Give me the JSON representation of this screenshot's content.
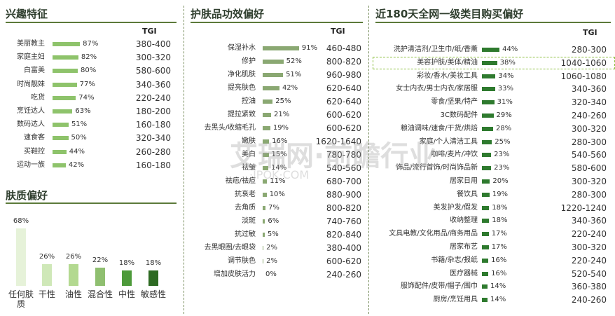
{
  "chart_data": [
    {
      "type": "bar",
      "title": "兴趣特征",
      "tgi_header": "TGI",
      "categories": [
        "美丽教主",
        "家庭主妇",
        "白富美",
        "时尚靓妹",
        "吃货",
        "烹饪达人",
        "数码达人",
        "速食客",
        "买鞋控",
        "运动一族"
      ],
      "values": [
        87,
        82,
        80,
        77,
        74,
        63,
        51,
        50,
        44,
        42
      ],
      "value_labels": [
        "87%",
        "82%",
        "80%",
        "77%",
        "74%",
        "63%",
        "51%",
        "50%",
        "44%",
        "42%"
      ],
      "tgi": [
        "380-400",
        "300-320",
        "580-600",
        "340-360",
        "220-240",
        "180-200",
        "160-180",
        "320-340",
        "260-280",
        "160-180"
      ],
      "xlim": [
        0,
        100
      ],
      "color": "#8ec36b"
    },
    {
      "type": "bar",
      "title": "肤质偏好",
      "categories": [
        "任何肤质",
        "干性",
        "油性",
        "混合性",
        "中性",
        "敏感性"
      ],
      "values": [
        68,
        26,
        26,
        22,
        18,
        18
      ],
      "value_labels": [
        "68%",
        "26%",
        "26%",
        "22%",
        "18%",
        "18%"
      ],
      "ylim": [
        0,
        70
      ],
      "colors": [
        "#e6f2d9",
        "#cfe8b8",
        "#b3d990",
        "#8fbf70",
        "#4d9a3a",
        "#2d6a22"
      ]
    },
    {
      "type": "bar",
      "title": "护肤品功效偏好",
      "tgi_header": "TGI",
      "categories": [
        "保湿补水",
        "修护",
        "净化肌肤",
        "提亮肤色",
        "控油",
        "提拉紧致",
        "去黑头/收缩毛孔",
        "嫩肤",
        "美白",
        "祛皱",
        "祛疤/祛痘",
        "抗衰老",
        "去角质",
        "淡斑",
        "抗过敏",
        "去黑眼圈/去眼袋",
        "调节肤色",
        "增加皮肤活力"
      ],
      "values": [
        91,
        52,
        51,
        42,
        25,
        21,
        19,
        16,
        15,
        14,
        11,
        10,
        7,
        6,
        5,
        2,
        2,
        0
      ],
      "value_labels": [
        "91%",
        "52%",
        "51%",
        "42%",
        "25%",
        "21%",
        "19%",
        "16%",
        "15%",
        "14%",
        "11%",
        "10%",
        "7%",
        "6%",
        "5%",
        "2%",
        "2%",
        "0%"
      ],
      "tgi": [
        "460-480",
        "800-820",
        "960-980",
        "620-640",
        "620-640",
        "600-620",
        "600-620",
        "1620-1640",
        "780-780",
        "540-560",
        "680-700",
        "880-900",
        "800-820",
        "740-760",
        "820-840",
        "380-400",
        "600-620",
        "240-260"
      ],
      "xlim": [
        0,
        100
      ],
      "color": "#8aa872"
    },
    {
      "type": "bar",
      "title": "近180天全网一级类目购买偏好",
      "tgi_header": "TGI",
      "categories": [
        "洗护清洁剂/卫生巾/纸/香薰",
        "美容护肤/美体/精油",
        "彩妆/香水/美妆工具",
        "女士内衣/男士内衣/家居服",
        "零食/坚果/特产",
        "3C数码配件",
        "粮油调味/速食/干货/烘焙",
        "家庭/个人清洁工具",
        "咖啡/麦片/冲饮",
        "饰品/流行首饰/时尚饰品新",
        "居家日用",
        "餐饮具",
        "美发护发/假发",
        "收纳整理",
        "文具电教/文化用品/商务用品",
        "居家布艺",
        "书籍/杂志/报纸",
        "医疗器械",
        "服饰配件/皮带/帽子/围巾",
        "厨房/烹饪用具"
      ],
      "values": [
        44,
        38,
        34,
        33,
        31,
        29,
        28,
        25,
        23,
        23,
        20,
        19,
        18,
        18,
        17,
        17,
        16,
        16,
        14,
        14
      ],
      "value_labels": [
        "44%",
        "38%",
        "34%",
        "33%",
        "31%",
        "29%",
        "28%",
        "25%",
        "23%",
        "23%",
        "20%",
        "19%",
        "18%",
        "18%",
        "17%",
        "17%",
        "16%",
        "16%",
        "14%",
        "14%"
      ],
      "tgi": [
        "280-300",
        "1040-1060",
        "1060-1080",
        "340-360",
        "320-340",
        "240-260",
        "300-320",
        "280-300",
        "540-560",
        "580-600",
        "300-320",
        "280-300",
        "1220-1240",
        "340-360",
        "220-240",
        "300-320",
        "220-240",
        "520-540",
        "360-380",
        "240-260"
      ],
      "highlight_index": 1,
      "xlim": [
        0,
        100
      ],
      "color": "#2e7a2e"
    }
  ],
  "watermark": {
    "line1": "艾瑞网·前瞻行业",
    "line2": "·IPOK·COM"
  }
}
